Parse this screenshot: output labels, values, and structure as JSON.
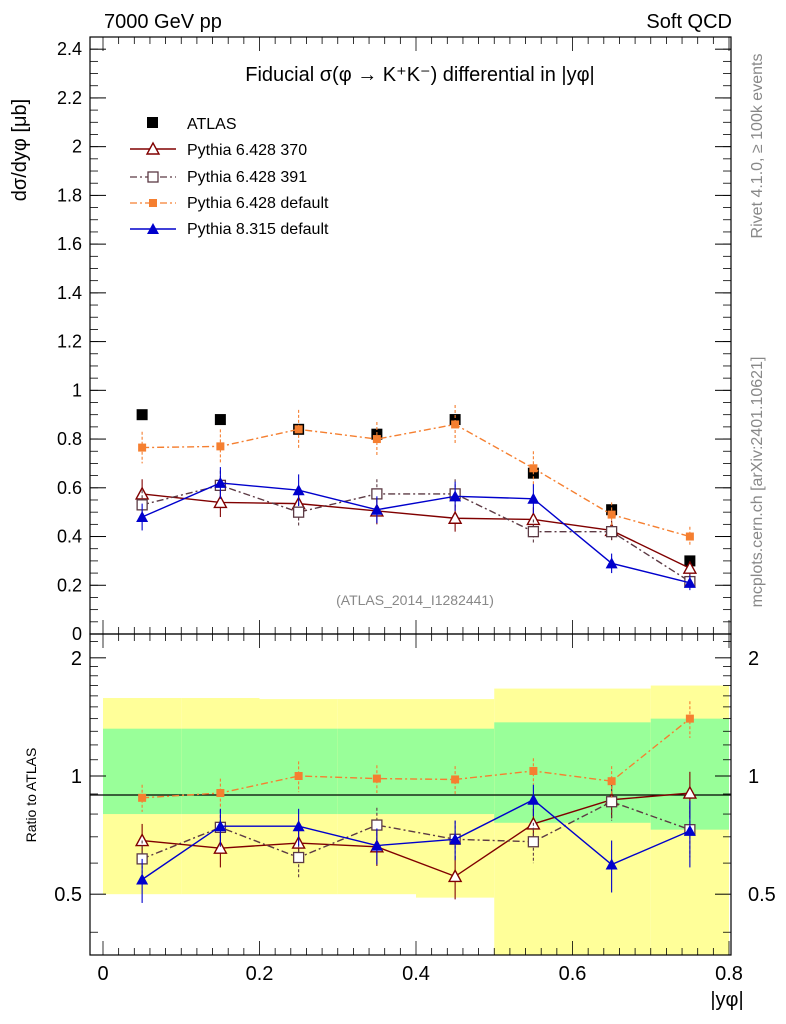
{
  "header": {
    "energy_label": "7000 GeV pp",
    "process_label": "Soft QCD"
  },
  "side_labels": {
    "rivet": "Rivet 4.1.0, ≥ 100k events",
    "mcplots": "mcplots.cern.ch [arXiv:2401.10621]"
  },
  "colors": {
    "atlas": "#000000",
    "p370": "#800000",
    "p391": "#5c3a44",
    "pdefault": "#f57f30",
    "p8": "#0000cc",
    "band_outer": "#ffff99",
    "band_inner": "#99ff99"
  },
  "chart_data": [
    {
      "type": "scatter",
      "title": "Fiducial σ(φ → K⁺K⁻) differential in |yφ|",
      "watermark": "(ATLAS_2014_I1282441)",
      "xlabel": "|yφ|",
      "ylabel": "dσ/dyφ [μb]",
      "xlim": [
        0,
        0.8
      ],
      "ylim": [
        0,
        2.45
      ],
      "yticks": [
        0,
        0.2,
        0.4,
        0.6,
        0.8,
        1,
        1.2,
        1.4,
        1.6,
        1.8,
        2,
        2.2,
        2.4
      ],
      "tick_labels": [
        "0",
        "0.2",
        "0.4",
        "0.6",
        "0.8",
        "1",
        "1.2",
        "1.4",
        "1.6",
        "1.8",
        "2",
        "2.2",
        "2.4"
      ],
      "x": [
        0.05,
        0.15,
        0.25,
        0.35,
        0.45,
        0.55,
        0.65,
        0.75
      ],
      "legend": [
        "ATLAS",
        "Pythia 6.428 370",
        "Pythia 6.428 391",
        "Pythia 6.428 default",
        "Pythia 8.315 default"
      ],
      "series": [
        {
          "name": "ATLAS",
          "values": [
            0.9,
            0.88,
            0.84,
            0.82,
            0.88,
            0.66,
            0.51,
            0.3
          ]
        },
        {
          "name": "Pythia 6.428 370",
          "values": [
            0.575,
            0.54,
            0.535,
            0.505,
            0.475,
            0.47,
            0.425,
            0.27
          ],
          "err": [
            0.06,
            0.06,
            0.06,
            0.055,
            0.055,
            0.05,
            0.04,
            0.03
          ]
        },
        {
          "name": "Pythia 6.428 391",
          "values": [
            0.53,
            0.61,
            0.5,
            0.575,
            0.575,
            0.42,
            0.42,
            0.215
          ],
          "err": [
            0.06,
            0.06,
            0.06,
            0.06,
            0.06,
            0.05,
            0.04,
            0.03
          ]
        },
        {
          "name": "Pythia 6.428 default",
          "values": [
            0.765,
            0.77,
            0.84,
            0.8,
            0.86,
            0.68,
            0.49,
            0.4
          ],
          "err": [
            0.065,
            0.07,
            0.08,
            0.07,
            0.08,
            0.07,
            0.05,
            0.04
          ]
        },
        {
          "name": "Pythia 8.315 default",
          "values": [
            0.48,
            0.62,
            0.59,
            0.51,
            0.565,
            0.555,
            0.29,
            0.21
          ],
          "err": [
            0.055,
            0.065,
            0.065,
            0.055,
            0.06,
            0.06,
            0.04,
            0.03
          ]
        }
      ]
    },
    {
      "type": "scatter",
      "title": "",
      "xlabel": "|yφ|",
      "ylabel": "Ratio to ATLAS",
      "xlim": [
        0,
        0.8
      ],
      "ylim": [
        0.35,
        2.3
      ],
      "yticks": [
        0.5,
        1,
        2
      ],
      "tick_labels": [
        "0.5",
        "1",
        "2"
      ],
      "xticks": [
        0,
        0.2,
        0.4,
        0.6,
        0.8
      ],
      "xtick_labels": [
        "0",
        "0.2",
        "0.4",
        "0.6",
        "0.8"
      ],
      "x": [
        0.05,
        0.15,
        0.25,
        0.35,
        0.45,
        0.55,
        0.65,
        0.75
      ],
      "bands": {
        "edges": [
          0.0,
          0.1,
          0.2,
          0.3,
          0.4,
          0.5,
          0.6,
          0.7,
          0.8
        ],
        "outer_lo": [
          0.5,
          0.5,
          0.5,
          0.5,
          0.49,
          0.33,
          0.33,
          0.33
        ],
        "outer_hi": [
          1.58,
          1.58,
          1.57,
          1.57,
          1.57,
          1.67,
          1.67,
          1.7
        ],
        "inner_lo": [
          0.8,
          0.8,
          0.8,
          0.8,
          0.8,
          0.76,
          0.76,
          0.73
        ],
        "inner_hi": [
          1.32,
          1.32,
          1.32,
          1.32,
          1.32,
          1.37,
          1.37,
          1.4
        ]
      },
      "series": [
        {
          "name": "Pythia 6.428 370",
          "values": [
            0.685,
            0.655,
            0.675,
            0.66,
            0.555,
            0.755,
            0.87,
            0.905
          ],
          "err": [
            0.07,
            0.07,
            0.07,
            0.07,
            0.07,
            0.07,
            0.09,
            0.12
          ]
        },
        {
          "name": "Pythia 6.428 391",
          "values": [
            0.615,
            0.74,
            0.62,
            0.75,
            0.69,
            0.68,
            0.86,
            0.73
          ],
          "err": [
            0.07,
            0.08,
            0.07,
            0.08,
            0.08,
            0.08,
            0.09,
            0.11
          ]
        },
        {
          "name": "Pythia 6.428 default",
          "values": [
            0.88,
            0.905,
            1.0,
            0.985,
            0.98,
            1.03,
            0.97,
            1.4
          ],
          "err": [
            0.07,
            0.08,
            0.09,
            0.08,
            0.08,
            0.08,
            0.09,
            0.15
          ]
        },
        {
          "name": "Pythia 8.315 default",
          "values": [
            0.545,
            0.745,
            0.745,
            0.665,
            0.69,
            0.87,
            0.595,
            0.725
          ],
          "err": [
            0.07,
            0.08,
            0.08,
            0.07,
            0.08,
            0.08,
            0.09,
            0.14
          ]
        }
      ]
    }
  ]
}
